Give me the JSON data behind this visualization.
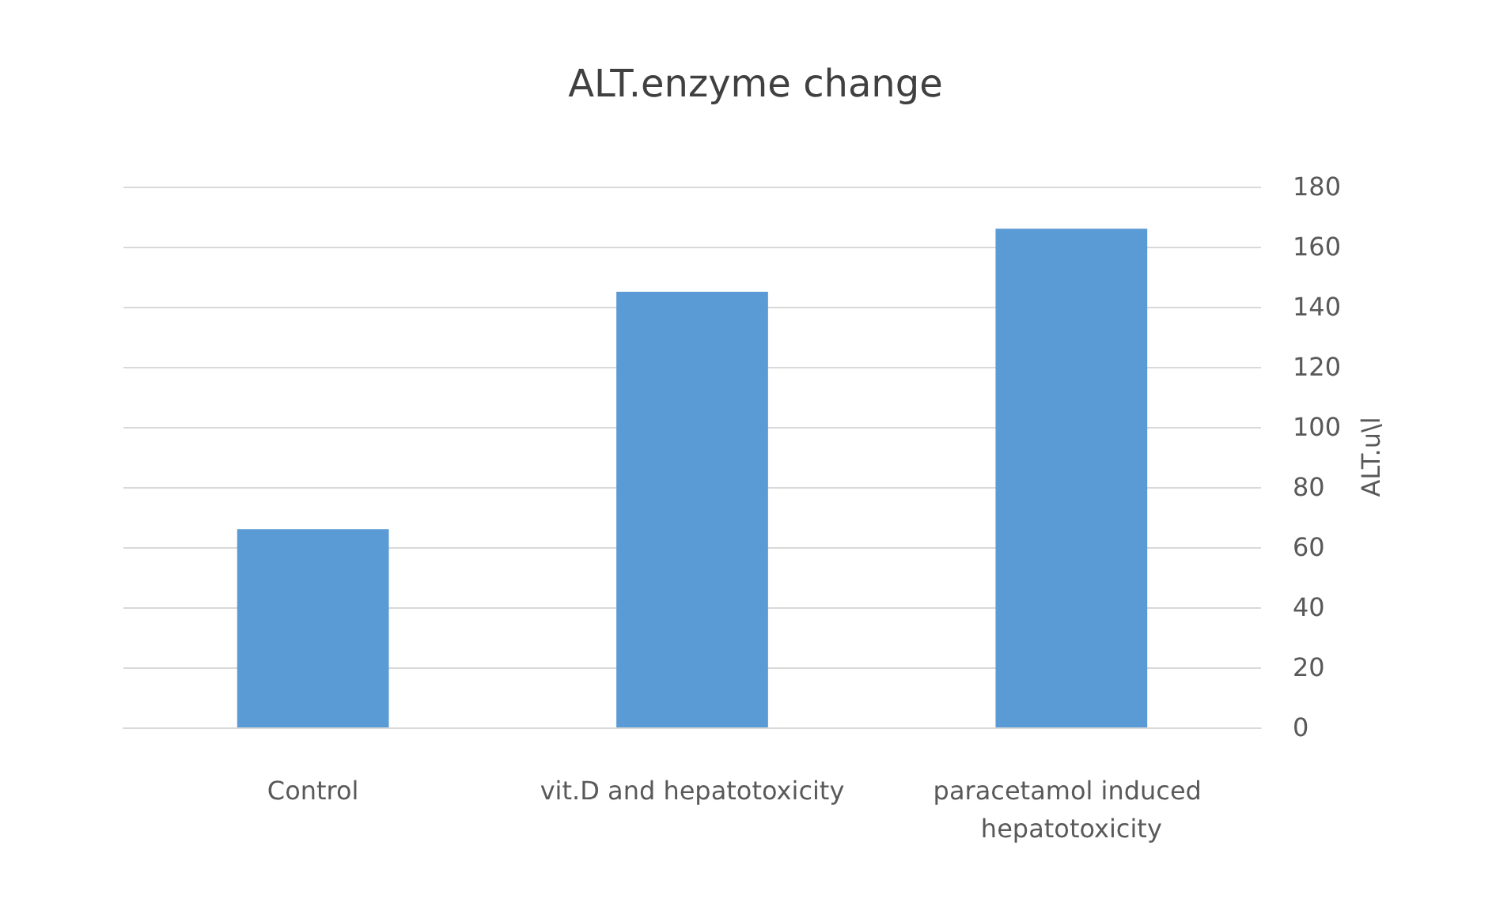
{
  "chart_data": {
    "type": "bar",
    "title": "ALT.enzyme change",
    "ylabel": "ALT.u\\l",
    "categories": [
      "Control",
      "vit.D and hepatotoxicity",
      "paracetamol induced hepatotoxicity"
    ],
    "values": [
      66,
      145,
      166
    ],
    "color": "#5b9bd5",
    "ylim": [
      0,
      180
    ],
    "yticks": [
      0,
      20,
      40,
      60,
      80,
      100,
      120,
      140,
      160,
      180
    ],
    "grid": "y"
  }
}
